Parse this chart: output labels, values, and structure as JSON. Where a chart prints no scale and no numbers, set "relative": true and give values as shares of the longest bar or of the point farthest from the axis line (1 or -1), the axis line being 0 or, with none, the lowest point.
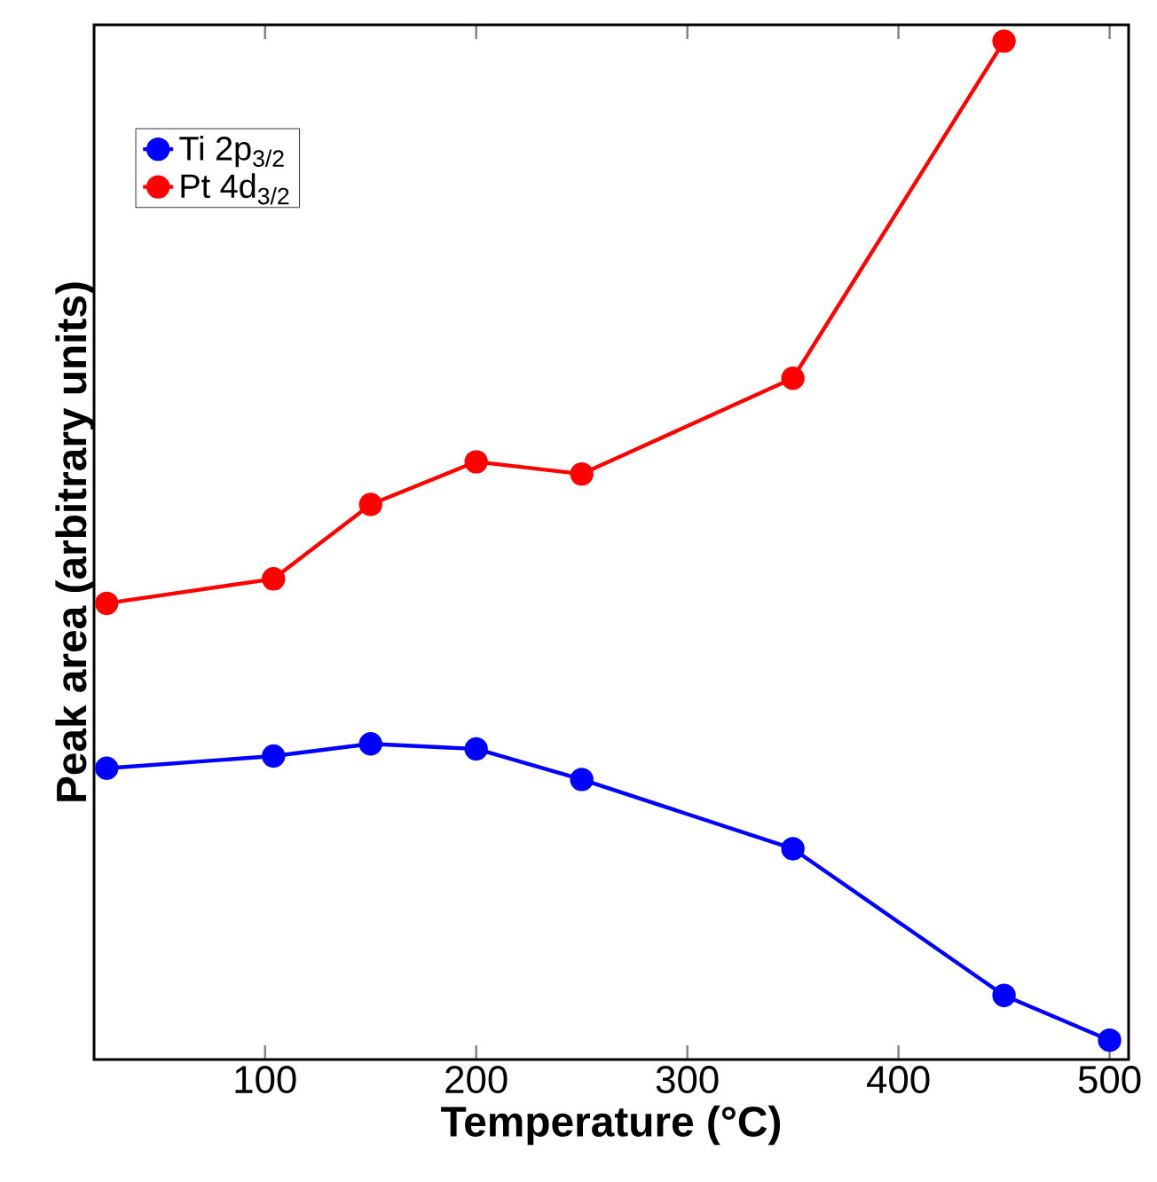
{
  "chart_data": {
    "type": "line",
    "xlabel": "Temperature (°C)",
    "ylabel": "Peak area (arbitrary units)",
    "relative": true,
    "xlim": [
      19,
      509
    ],
    "xticks": [
      100,
      200,
      300,
      400,
      500
    ],
    "series": [
      {
        "name": "Ti 2p$_{3/2}$",
        "color": "#0000ff",
        "x": [
          25,
          104,
          150,
          200,
          250,
          350,
          450,
          500
        ],
        "values": [
          0.286,
          0.298,
          0.31,
          0.305,
          0.275,
          0.207,
          0.063,
          0.019
        ]
      },
      {
        "name": "Pt 4d$_{3/2}$",
        "color": "#ff0000",
        "x": [
          25,
          104,
          150,
          200,
          250,
          350,
          450
        ],
        "values": [
          0.448,
          0.472,
          0.545,
          0.587,
          0.575,
          0.669,
          1
        ]
      }
    ],
    "legend": "top left",
    "grid": false,
    "marker": "circle",
    "line_style": "solid"
  }
}
